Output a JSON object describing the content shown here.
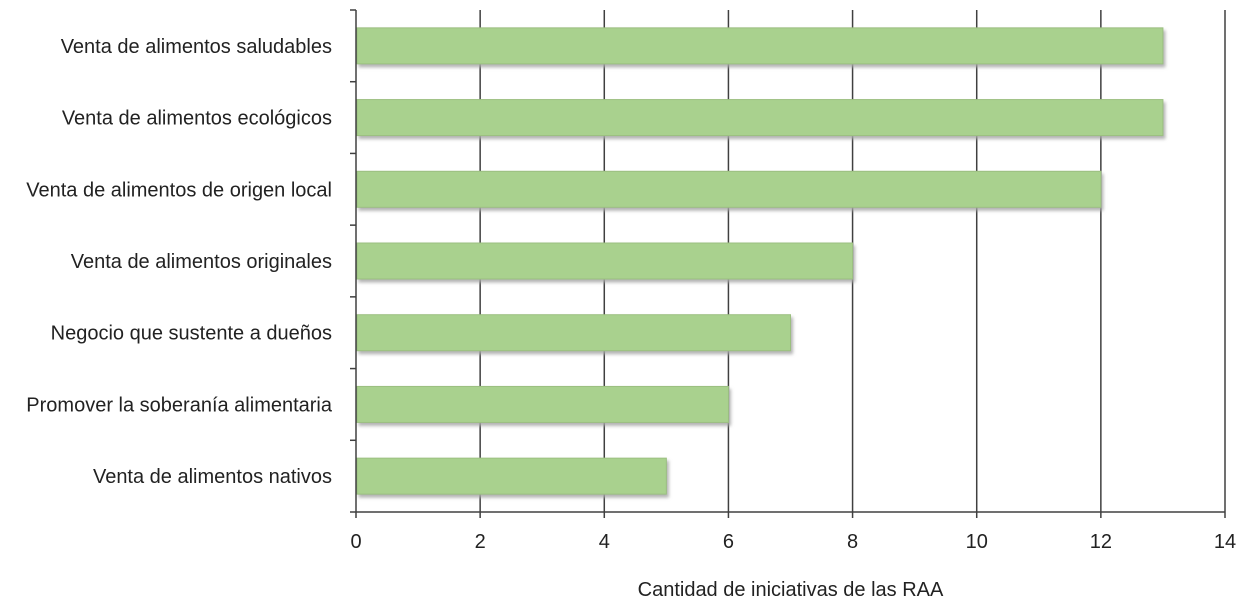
{
  "chart_data": {
    "type": "bar",
    "orientation": "horizontal",
    "categories": [
      "Venta de alimentos saludables",
      "Venta de alimentos ecológicos",
      "Venta de alimentos de origen local",
      "Venta de alimentos originales",
      "Negocio que sustente a dueños",
      "Promover la soberanía alimentaria",
      "Venta de alimentos nativos"
    ],
    "values": [
      13,
      13,
      12,
      8,
      7,
      6,
      5
    ],
    "xlabel": "Cantidad de iniciativas de las RAA",
    "ylabel": "",
    "xlim": [
      0,
      14
    ],
    "xticks": [
      "0",
      "2",
      "4",
      "6",
      "8",
      "10",
      "12",
      "14"
    ],
    "grid": "vertical",
    "legend": "none",
    "colors": {
      "bar": "#a9d18e",
      "bar_edge": "#9bbf80",
      "bar_shadow": "#a6a6a6",
      "grid": "#404040",
      "axis": "#404040"
    }
  }
}
